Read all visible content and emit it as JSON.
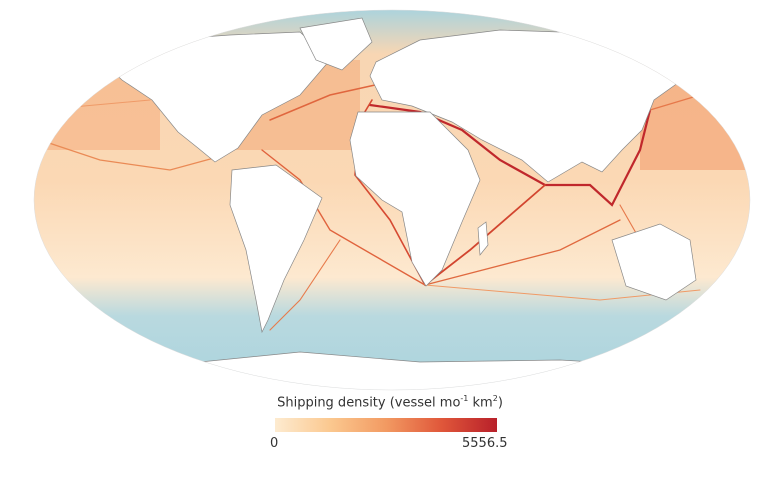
{
  "map": {
    "projection": "Robinson-like world",
    "ocean_color": "#a9d3de",
    "land_color": "#ffffff",
    "low_density_color": "#fdebd0",
    "high_density_color": "#b8202a"
  },
  "legend": {
    "title_prefix": "Shipping density (vessel mo",
    "title_sup1": "-1",
    "title_mid": " km",
    "title_sup2": "2",
    "title_suffix": ")",
    "min_label": "0",
    "max_label": "5556.5",
    "min_value": 0,
    "max_value": 5556.5
  }
}
